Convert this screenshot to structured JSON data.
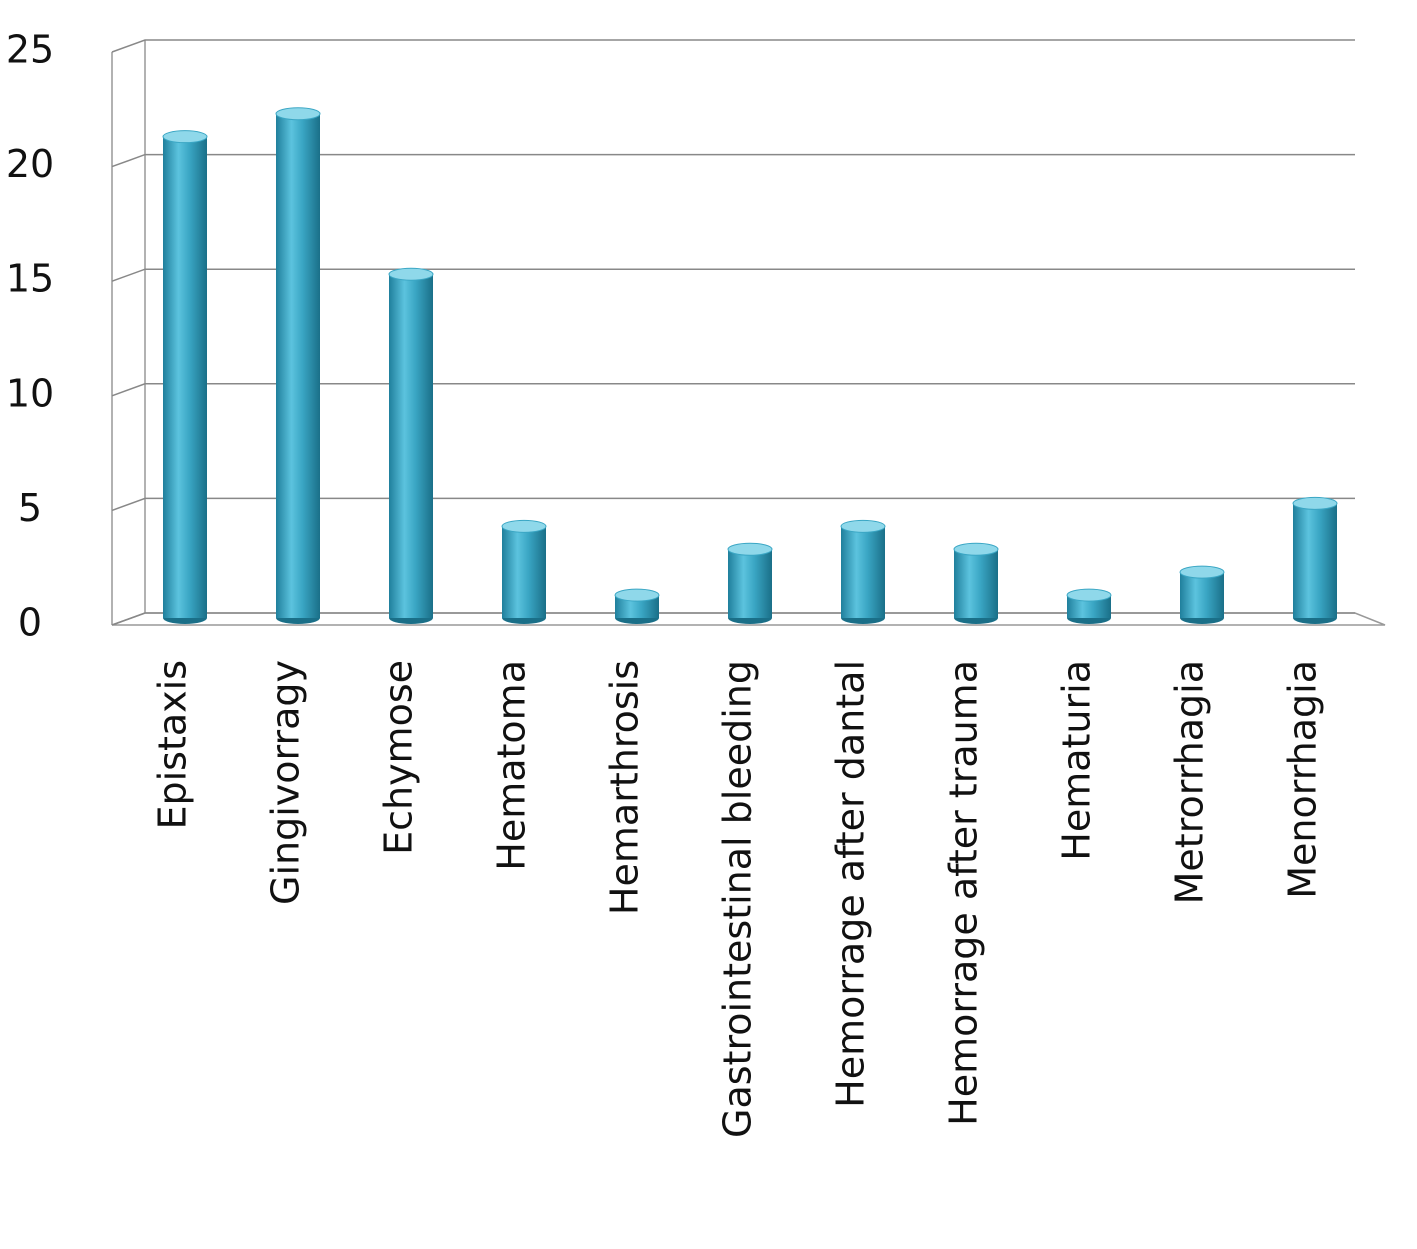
{
  "chart_data": {
    "type": "bar",
    "categories": [
      "Epistaxis",
      "Gingivorragy",
      "Echymose",
      "Hematoma",
      "Hemarthrosis",
      "Gastrointestinal bleeding",
      "Hemorrage after dantal",
      "Hemorrage after trauma",
      "Hematuria",
      "Metrorrhagia",
      "Menorrhagia"
    ],
    "values": [
      21,
      22,
      15,
      4,
      1,
      3,
      4,
      3,
      1,
      2,
      5
    ],
    "color": "#3aa6c4",
    "ylim": [
      0,
      25
    ],
    "yticks": [
      0,
      5,
      10,
      15,
      20,
      25
    ],
    "grid": true
  }
}
